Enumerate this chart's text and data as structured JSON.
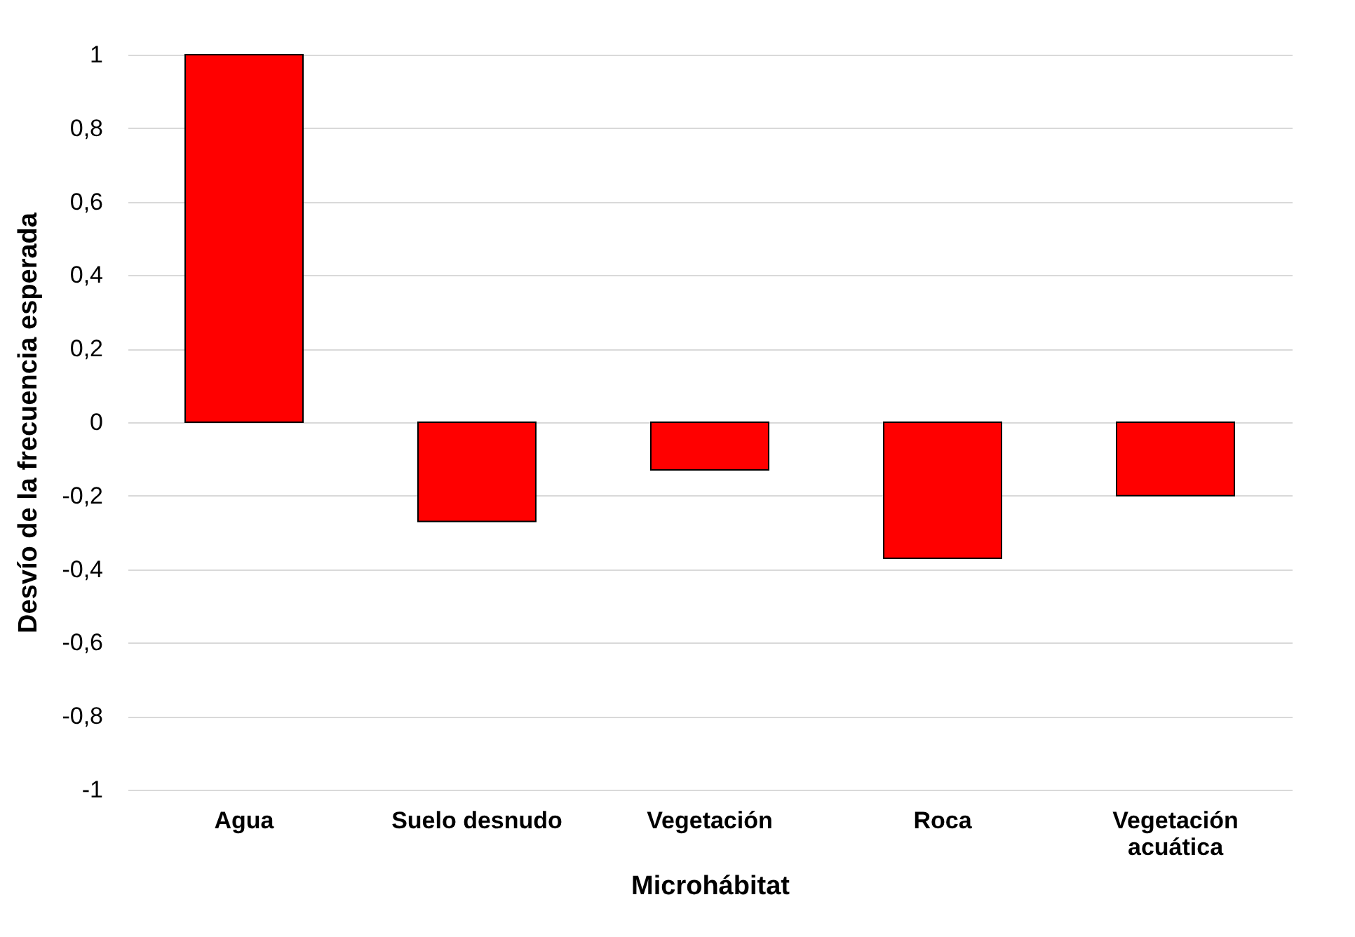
{
  "chart_data": {
    "type": "bar",
    "xlabel": "Microhábitat",
    "ylabel": "Desvío de la frecuencia esperada",
    "categories": [
      "Agua",
      "Suelo desnudo",
      "Vegetación",
      "Roca",
      "Vegetación acuática"
    ],
    "values": [
      1.0,
      -0.27,
      -0.13,
      -0.37,
      -0.2
    ],
    "color": "#ff0000",
    "ylim": [
      -1,
      1
    ],
    "yticks": [
      {
        "value": -1,
        "label": "-1"
      },
      {
        "value": -0.8,
        "label": "-0,8"
      },
      {
        "value": -0.6,
        "label": "-0,6"
      },
      {
        "value": -0.4,
        "label": "-0,4"
      },
      {
        "value": -0.2,
        "label": "-0,2"
      },
      {
        "value": 0,
        "label": "0"
      },
      {
        "value": 0.2,
        "label": "0,2"
      },
      {
        "value": 0.4,
        "label": "0,4"
      },
      {
        "value": 0.6,
        "label": "0,6"
      },
      {
        "value": 0.8,
        "label": "0,8"
      },
      {
        "value": 1,
        "label": "1"
      }
    ],
    "grid": "y"
  }
}
